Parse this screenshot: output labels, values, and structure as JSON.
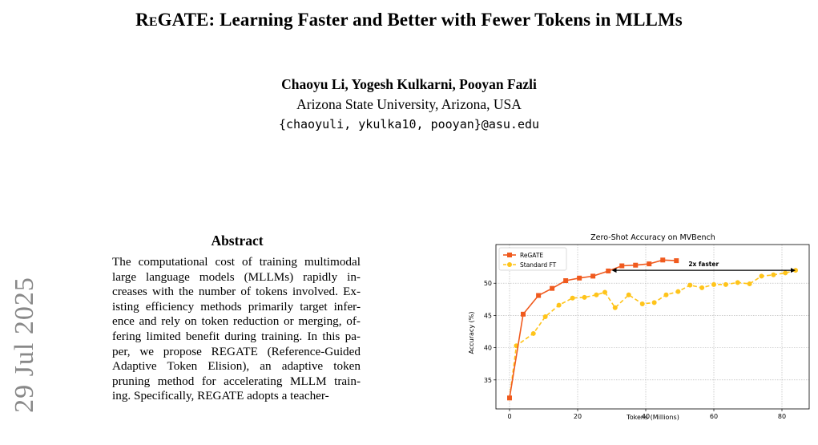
{
  "paper": {
    "title_lead_caps": "R",
    "title_small_caps": "e",
    "title_rest": "GATE: Learning Faster and Better with Fewer Tokens in MLLMs",
    "authors": "Chaoyu Li, Yogesh Kulkarni, Pooyan Fazli",
    "affiliation": "Arizona State University, Arizona, USA",
    "email": "{chaoyuli, ykulka10, pooyan}@asu.edu",
    "arxiv_date": "29 Jul 2025"
  },
  "abstract": {
    "heading": "Abstract",
    "lines": [
      "The computational cost of training multimodal",
      "large language models (MLLMs) rapidly in-",
      "creases with the number of tokens involved. Ex-",
      "isting efficiency methods primarily target infer-",
      "ence and rely on token reduction or merging, of-",
      "fering limited benefit during training. In this pa-",
      "per, we propose REGATE (Reference-Guided",
      "Adaptive Token Elision), an adaptive token",
      "pruning method for accelerating MLLM train-",
      "ing. Specifically, REGATE adopts a teacher-"
    ]
  },
  "chart_data": {
    "type": "line",
    "title": "Zero-Shot Accuracy on MVBench",
    "xlabel": "Tokens (Millions)",
    "ylabel": "Accuracy (%)",
    "xlim": [
      -4,
      88
    ],
    "ylim": [
      30.5,
      56
    ],
    "xticks": [
      0,
      20,
      40,
      60,
      80
    ],
    "yticks": [
      35,
      40,
      45,
      50
    ],
    "grid": true,
    "legend_position": "top-left",
    "series": [
      {
        "name": "ReGATE",
        "color": "#f05a1e",
        "style": "solid",
        "marker": "square",
        "points": [
          [
            0,
            32.2
          ],
          [
            4,
            45.2
          ],
          [
            8.5,
            48.1
          ],
          [
            12.5,
            49.2
          ],
          [
            16.5,
            50.4
          ],
          [
            20.5,
            50.8
          ],
          [
            24.5,
            51.1
          ],
          [
            29,
            51.9
          ],
          [
            33,
            52.7
          ],
          [
            37,
            52.8
          ],
          [
            41,
            53.0
          ],
          [
            45,
            53.6
          ],
          [
            49,
            53.5
          ]
        ]
      },
      {
        "name": "Standard FT",
        "color": "#ffc41a",
        "style": "dashed",
        "marker": "circle",
        "points": [
          [
            0,
            32.2
          ],
          [
            2,
            40.3
          ],
          [
            7,
            42.2
          ],
          [
            10.5,
            44.8
          ],
          [
            14.5,
            46.6
          ],
          [
            18.5,
            47.7
          ],
          [
            22,
            47.8
          ],
          [
            25.5,
            48.2
          ],
          [
            28,
            48.6
          ],
          [
            31,
            46.2
          ],
          [
            35,
            48.2
          ],
          [
            39,
            46.8
          ],
          [
            42.5,
            47.0
          ],
          [
            46,
            48.2
          ],
          [
            49.5,
            48.7
          ],
          [
            53,
            49.7
          ],
          [
            56.5,
            49.3
          ],
          [
            60,
            49.8
          ],
          [
            63.5,
            49.8
          ],
          [
            67,
            50.1
          ],
          [
            70.5,
            49.9
          ],
          [
            74,
            51.1
          ],
          [
            77.5,
            51.3
          ],
          [
            81,
            51.6
          ],
          [
            84,
            52.0
          ]
        ]
      }
    ],
    "annotation": {
      "text": "2x faster",
      "arrow_from": [
        30,
        52.0
      ],
      "arrow_to": [
        84,
        52.0
      ]
    }
  }
}
